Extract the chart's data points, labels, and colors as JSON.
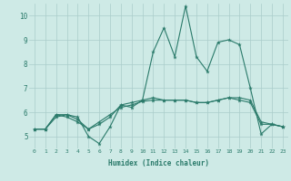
{
  "x": [
    0,
    1,
    2,
    3,
    4,
    5,
    6,
    7,
    8,
    9,
    10,
    11,
    12,
    13,
    14,
    15,
    16,
    17,
    18,
    19,
    20,
    21,
    22,
    23
  ],
  "line1": [
    5.3,
    5.3,
    5.9,
    5.9,
    5.8,
    5.0,
    4.7,
    5.4,
    6.3,
    6.2,
    6.5,
    8.5,
    9.5,
    8.3,
    10.4,
    8.3,
    7.7,
    8.9,
    9.0,
    8.8,
    7.0,
    5.1,
    5.5,
    5.4
  ],
  "line2": [
    5.3,
    5.3,
    5.9,
    5.8,
    5.6,
    5.3,
    5.5,
    5.8,
    6.3,
    6.4,
    6.5,
    6.6,
    6.5,
    6.5,
    6.5,
    6.4,
    6.4,
    6.5,
    6.6,
    6.5,
    6.4,
    5.5,
    5.5,
    5.4
  ],
  "line3": [
    5.3,
    5.3,
    5.8,
    5.9,
    5.7,
    5.3,
    5.6,
    5.9,
    6.2,
    6.3,
    6.45,
    6.5,
    6.5,
    6.5,
    6.5,
    6.4,
    6.4,
    6.5,
    6.6,
    6.6,
    6.5,
    5.6,
    5.5,
    5.4
  ],
  "line_color": "#2a7a6a",
  "bg_color": "#ceeae6",
  "grid_color": "#aaccca",
  "xlabel": "Humidex (Indice chaleur)",
  "ylim": [
    4.5,
    10.5
  ],
  "xlim": [
    -0.5,
    23.5
  ],
  "yticks": [
    5,
    6,
    7,
    8,
    9,
    10
  ],
  "xticks": [
    0,
    1,
    2,
    3,
    4,
    5,
    6,
    7,
    8,
    9,
    10,
    11,
    12,
    13,
    14,
    15,
    16,
    17,
    18,
    19,
    20,
    21,
    22,
    23
  ]
}
